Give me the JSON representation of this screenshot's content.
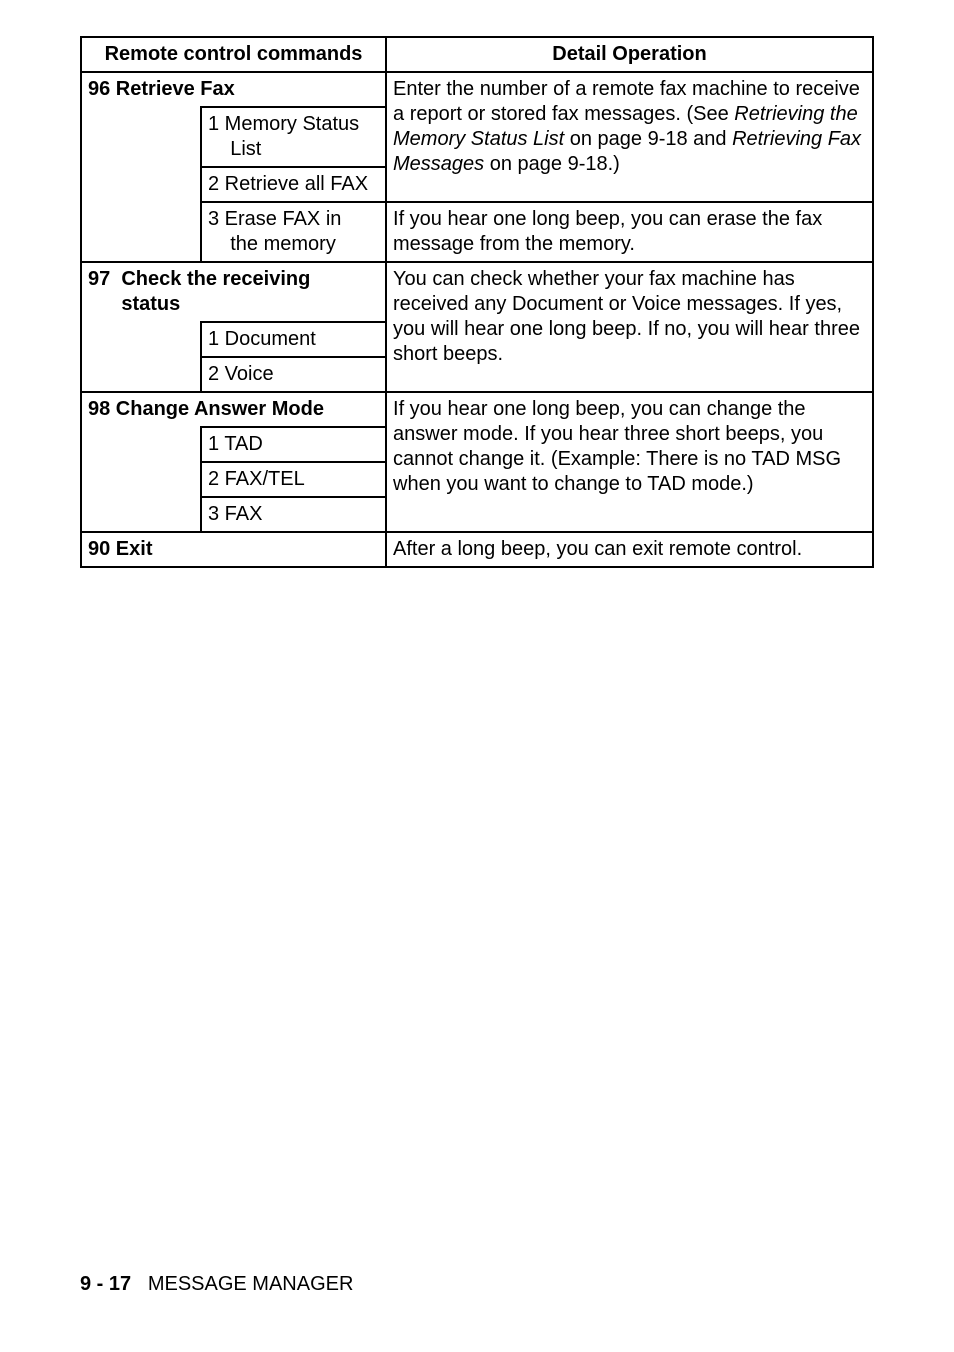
{
  "table": {
    "headers": {
      "remote": "Remote control commands",
      "detail": "Detail Operation"
    },
    "row96": {
      "label": "96  Retrieve Fax",
      "sub1": "1 Memory Status\n    List",
      "sub2": "2 Retrieve all FAX",
      "sub3": "3 Erase FAX in\n    the memory",
      "detail_main_pre": "Enter the number of a remote fax machine to receive a report or stored fax messages. (See ",
      "detail_main_ital1": "Retrieving the Memory Status List",
      "detail_main_mid": " on page 9-18 and ",
      "detail_main_ital2": "Retrieving Fax Messages",
      "detail_main_post": " on page 9-18.)",
      "detail_erase": "If you hear one long beep, you can erase the fax message from the memory."
    },
    "row97": {
      "label": "97  Check the receiving\n      status",
      "sub1": "1 Document",
      "sub2": "2 Voice",
      "detail": "You can check whether your fax machine has received any Document or Voice messages. If yes, you will hear one long beep. If no, you will hear three short beeps."
    },
    "row98": {
      "label": "98  Change Answer Mode",
      "sub1": "1 TAD",
      "sub2": "2 FAX/TEL",
      "sub3": "3 FAX",
      "detail": "If you hear one long beep, you can change the answer mode. If you hear three short beeps, you cannot change it. (Example: There is no TAD MSG when you want to change to TAD mode.)"
    },
    "row90": {
      "label": "90  Exit",
      "detail": "After a long beep, you can exit remote control."
    }
  },
  "footer": {
    "page": "9 - 17",
    "section": "MESSAGE MANAGER"
  }
}
